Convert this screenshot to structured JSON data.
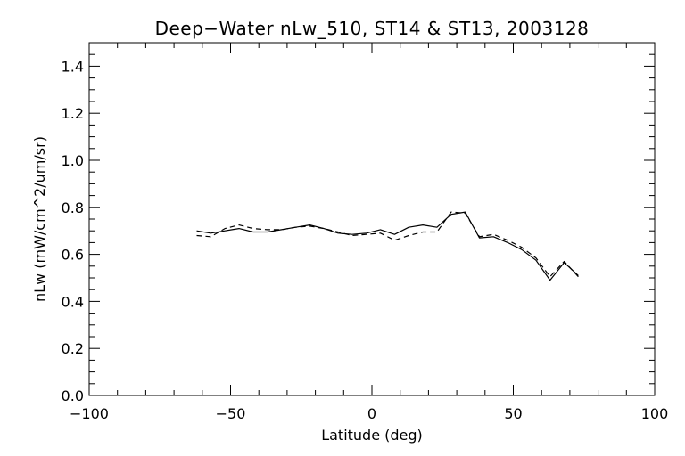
{
  "chart_data": {
    "type": "line",
    "title": "Deep−Water nLw_510, ST14 & ST13, 2003128",
    "xlabel": "Latitude (deg)",
    "ylabel": "nLw (mW/cm^2/um/sr)",
    "xlim": [
      -100,
      100
    ],
    "ylim": [
      0.0,
      1.5
    ],
    "x_ticks": [
      -100,
      -50,
      0,
      50,
      100
    ],
    "x_tick_labels": [
      "−100",
      "−50",
      "0",
      "50",
      "100"
    ],
    "y_ticks": [
      0.0,
      0.2,
      0.4,
      0.6,
      0.8,
      1.0,
      1.2,
      1.4
    ],
    "y_tick_labels": [
      "0.0",
      "0.2",
      "0.4",
      "0.6",
      "0.8",
      "1.0",
      "1.2",
      "1.4"
    ],
    "grid": false,
    "series": [
      {
        "style": "solid",
        "color": "#000000",
        "x": [
          -62,
          -57,
          -52,
          -47,
          -42,
          -37,
          -32,
          -27,
          -22,
          -17,
          -12,
          -7,
          -2,
          3,
          8,
          13,
          18,
          23,
          28,
          33,
          38,
          43,
          48,
          53,
          58,
          63,
          68,
          73
        ],
        "y": [
          0.7,
          0.69,
          0.7,
          0.71,
          0.695,
          0.695,
          0.705,
          0.715,
          0.725,
          0.71,
          0.69,
          0.685,
          0.69,
          0.705,
          0.685,
          0.715,
          0.725,
          0.715,
          0.77,
          0.78,
          0.67,
          0.675,
          0.65,
          0.62,
          0.575,
          0.49,
          0.565,
          0.51
        ]
      },
      {
        "style": "dashed",
        "color": "#000000",
        "x": [
          -62,
          -57,
          -52,
          -47,
          -42,
          -37,
          -32,
          -27,
          -22,
          -17,
          -12,
          -7,
          -2,
          3,
          8,
          13,
          18,
          23,
          28,
          33,
          38,
          43,
          48,
          53,
          58,
          63,
          68,
          73
        ],
        "y": [
          0.68,
          0.675,
          0.71,
          0.725,
          0.71,
          0.705,
          0.705,
          0.715,
          0.72,
          0.71,
          0.695,
          0.68,
          0.685,
          0.69,
          0.66,
          0.68,
          0.695,
          0.695,
          0.78,
          0.775,
          0.675,
          0.685,
          0.66,
          0.63,
          0.585,
          0.505,
          0.57,
          0.505
        ]
      }
    ]
  }
}
